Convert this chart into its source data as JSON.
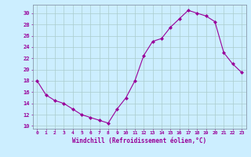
{
  "x": [
    0,
    1,
    2,
    3,
    4,
    5,
    6,
    7,
    8,
    9,
    10,
    11,
    12,
    13,
    14,
    15,
    16,
    17,
    18,
    19,
    20,
    21,
    22,
    23
  ],
  "y": [
    18,
    15.5,
    14.5,
    14,
    13,
    12,
    11.5,
    11,
    10.5,
    13,
    15,
    18,
    22.5,
    25,
    25.5,
    27.5,
    29,
    30.5,
    30,
    29.5,
    28.5,
    23,
    21,
    19.5
  ],
  "xlabel": "Windchill (Refroidissement éolien,°C)",
  "ylim_min": 9.5,
  "ylim_max": 31.5,
  "xlim_min": -0.5,
  "xlim_max": 23.5,
  "yticks": [
    10,
    12,
    14,
    16,
    18,
    20,
    22,
    24,
    26,
    28,
    30
  ],
  "bg_color": "#cceeff",
  "line_color": "#990099",
  "grid_color": "#bbdddd"
}
